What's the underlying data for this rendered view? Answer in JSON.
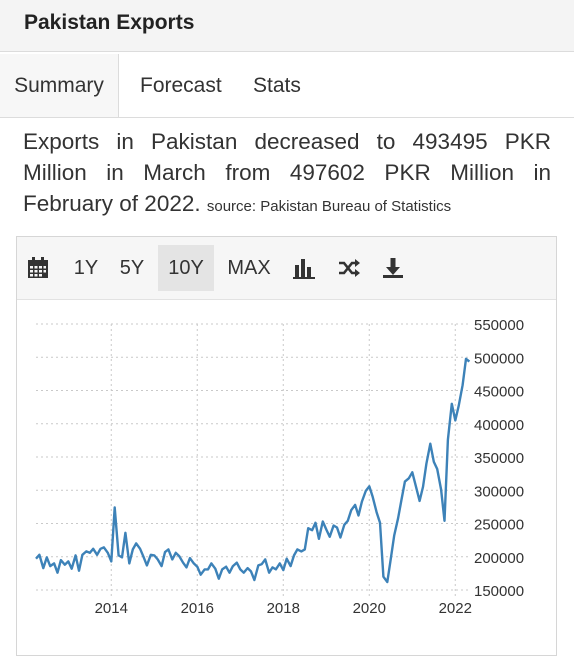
{
  "header": {
    "title": "Pakistan Exports"
  },
  "tabs": [
    {
      "label": "Summary",
      "active": true
    },
    {
      "label": "Forecast",
      "active": false
    },
    {
      "label": "Stats",
      "active": false
    }
  ],
  "summary": {
    "text": "Exports in Pakistan decreased to 493495 PKR Million in March from 497602 PKR Million in February of 2022.",
    "source": "source: Pakistan Bureau of Statistics"
  },
  "toolbar": {
    "icons": [
      "calendar-icon",
      "bar-chart-icon",
      "shuffle-icon",
      "download-icon"
    ],
    "ranges": [
      {
        "label": "1Y",
        "active": false
      },
      {
        "label": "5Y",
        "active": false
      },
      {
        "label": "10Y",
        "active": true
      },
      {
        "label": "MAX",
        "active": false
      }
    ]
  },
  "colors": {
    "line": "#3d82b8",
    "grid": "#c9c9c9",
    "axis_text": "#333333",
    "toolbar_bg": "#f6f6f6"
  },
  "chart_data": {
    "type": "line",
    "title": "",
    "xlabel": "",
    "ylabel": "",
    "x_range": [
      2012.25,
      2022.25
    ],
    "ylim": [
      150000,
      550000
    ],
    "x_ticks": [
      "2014",
      "2016",
      "2018",
      "2020",
      "2022"
    ],
    "y_ticks": [
      "550000",
      "500000",
      "450000",
      "400000",
      "350000",
      "300000",
      "250000",
      "200000",
      "150000"
    ],
    "grid": true,
    "y_axis_position": "right",
    "series": [
      {
        "name": "",
        "points": [
          [
            2012.25,
            197000
          ],
          [
            2012.33,
            203000
          ],
          [
            2012.42,
            183000
          ],
          [
            2012.5,
            199000
          ],
          [
            2012.58,
            186000
          ],
          [
            2012.67,
            190000
          ],
          [
            2012.75,
            176000
          ],
          [
            2012.83,
            195000
          ],
          [
            2012.92,
            188000
          ],
          [
            2013.0,
            193000
          ],
          [
            2013.08,
            182000
          ],
          [
            2013.17,
            202000
          ],
          [
            2013.25,
            179000
          ],
          [
            2013.33,
            203000
          ],
          [
            2013.42,
            208000
          ],
          [
            2013.5,
            206000
          ],
          [
            2013.58,
            212000
          ],
          [
            2013.67,
            203000
          ],
          [
            2013.75,
            212000
          ],
          [
            2013.83,
            214000
          ],
          [
            2013.92,
            206000
          ],
          [
            2014.0,
            193000
          ],
          [
            2014.08,
            274000
          ],
          [
            2014.17,
            202000
          ],
          [
            2014.25,
            199000
          ],
          [
            2014.33,
            236000
          ],
          [
            2014.42,
            190000
          ],
          [
            2014.5,
            211000
          ],
          [
            2014.58,
            220000
          ],
          [
            2014.67,
            212000
          ],
          [
            2014.75,
            200000
          ],
          [
            2014.83,
            187000
          ],
          [
            2014.92,
            203000
          ],
          [
            2015.0,
            202000
          ],
          [
            2015.08,
            196000
          ],
          [
            2015.17,
            186000
          ],
          [
            2015.25,
            207000
          ],
          [
            2015.33,
            211000
          ],
          [
            2015.42,
            196000
          ],
          [
            2015.5,
            206000
          ],
          [
            2015.58,
            201000
          ],
          [
            2015.67,
            191000
          ],
          [
            2015.75,
            184000
          ],
          [
            2015.83,
            198000
          ],
          [
            2015.92,
            190000
          ],
          [
            2016.0,
            185000
          ],
          [
            2016.08,
            173000
          ],
          [
            2016.17,
            181000
          ],
          [
            2016.25,
            181000
          ],
          [
            2016.33,
            190000
          ],
          [
            2016.42,
            182000
          ],
          [
            2016.5,
            167000
          ],
          [
            2016.58,
            181000
          ],
          [
            2016.67,
            185000
          ],
          [
            2016.75,
            176000
          ],
          [
            2016.83,
            186000
          ],
          [
            2016.92,
            191000
          ],
          [
            2017.0,
            181000
          ],
          [
            2017.08,
            176000
          ],
          [
            2017.17,
            183000
          ],
          [
            2017.25,
            178000
          ],
          [
            2017.33,
            165000
          ],
          [
            2017.42,
            187000
          ],
          [
            2017.5,
            189000
          ],
          [
            2017.58,
            196000
          ],
          [
            2017.67,
            176000
          ],
          [
            2017.75,
            184000
          ],
          [
            2017.83,
            181000
          ],
          [
            2017.92,
            190000
          ],
          [
            2018.0,
            180000
          ],
          [
            2018.08,
            197000
          ],
          [
            2018.17,
            186000
          ],
          [
            2018.25,
            202000
          ],
          [
            2018.33,
            211000
          ],
          [
            2018.42,
            208000
          ],
          [
            2018.5,
            211000
          ],
          [
            2018.58,
            243000
          ],
          [
            2018.67,
            240000
          ],
          [
            2018.75,
            251000
          ],
          [
            2018.83,
            227000
          ],
          [
            2018.92,
            253000
          ],
          [
            2019.0,
            241000
          ],
          [
            2019.08,
            230000
          ],
          [
            2019.17,
            247000
          ],
          [
            2019.25,
            244000
          ],
          [
            2019.33,
            229000
          ],
          [
            2019.42,
            248000
          ],
          [
            2019.5,
            254000
          ],
          [
            2019.58,
            270000
          ],
          [
            2019.67,
            278000
          ],
          [
            2019.75,
            262000
          ],
          [
            2019.83,
            283000
          ],
          [
            2019.92,
            299000
          ],
          [
            2020.0,
            306000
          ],
          [
            2020.08,
            290000
          ],
          [
            2020.17,
            267000
          ],
          [
            2020.25,
            251000
          ],
          [
            2020.33,
            170000
          ],
          [
            2020.42,
            162000
          ],
          [
            2020.5,
            197000
          ],
          [
            2020.58,
            232000
          ],
          [
            2020.67,
            258000
          ],
          [
            2020.75,
            286000
          ],
          [
            2020.83,
            313000
          ],
          [
            2020.92,
            318000
          ],
          [
            2021.0,
            327000
          ],
          [
            2021.08,
            307000
          ],
          [
            2021.17,
            284000
          ],
          [
            2021.25,
            305000
          ],
          [
            2021.33,
            340000
          ],
          [
            2021.42,
            370000
          ],
          [
            2021.5,
            343000
          ],
          [
            2021.58,
            332000
          ],
          [
            2021.67,
            301000
          ],
          [
            2021.75,
            254000
          ],
          [
            2021.83,
            376000
          ],
          [
            2021.92,
            430000
          ],
          [
            2022.0,
            405000
          ],
          [
            2022.08,
            427000
          ],
          [
            2022.17,
            458000
          ],
          [
            2022.25,
            497602
          ],
          [
            2022.33,
            493495
          ]
        ]
      }
    ]
  }
}
